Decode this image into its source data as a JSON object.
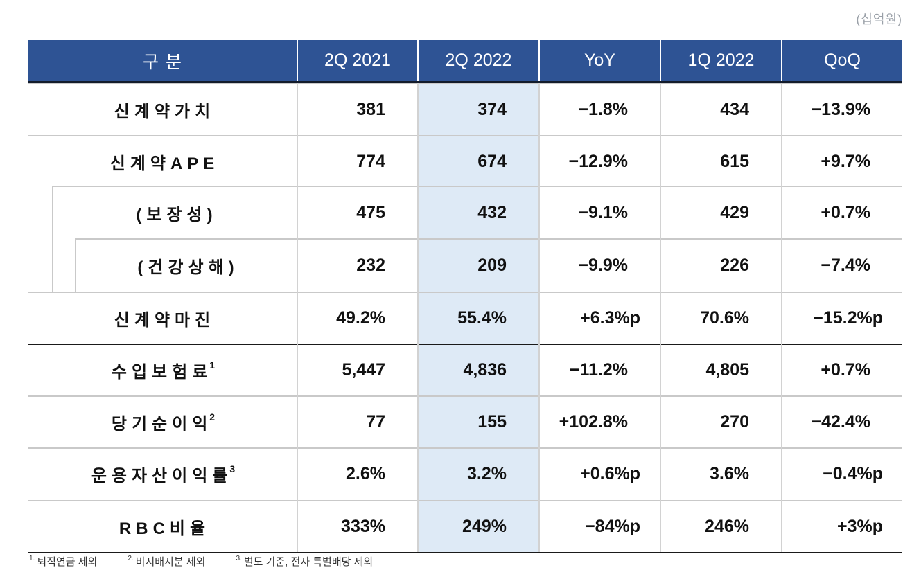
{
  "unit_label": "(십억원)",
  "colors": {
    "header_bg": "#2E5394",
    "header_text": "#FFFFFF",
    "highlight_column_bg": "#DEEAF6",
    "grid_line": "#C9C9C9",
    "section_line": "#1A1A1A",
    "unit_text": "#9AA0A8",
    "body_text": "#111111"
  },
  "table": {
    "columns": [
      "구분",
      "2Q 2021",
      "2Q 2022",
      "YoY",
      "1Q 2022",
      "QoQ"
    ],
    "highlighted_column": "2Q 2022",
    "rows": [
      {
        "label": "신계약가치",
        "sup": "",
        "indent": 0,
        "section_start": false,
        "values": [
          "381",
          "374",
          "−1.8%",
          "434",
          "−13.9%"
        ]
      },
      {
        "label": "신계약APE",
        "sup": "",
        "indent": 0,
        "section_start": false,
        "values": [
          "774",
          "674",
          "−12.9%",
          "615",
          "+9.7%"
        ]
      },
      {
        "label": "(보장성)",
        "sup": "",
        "indent": 1,
        "section_start": false,
        "values": [
          "475",
          "432",
          "−9.1%",
          "429",
          "+0.7%"
        ]
      },
      {
        "label": "(건강상해)",
        "sup": "",
        "indent": 2,
        "section_start": false,
        "values": [
          "232",
          "209",
          "−9.9%",
          "226",
          "−7.4%"
        ]
      },
      {
        "label": "신계약마진",
        "sup": "",
        "indent": 0,
        "section_start": false,
        "values": [
          "49.2%",
          "55.4%",
          "+6.3%p",
          "70.6%",
          "−15.2%p"
        ]
      },
      {
        "label": "수입보험료",
        "sup": "1",
        "indent": 0,
        "section_start": true,
        "values": [
          "5,447",
          "4,836",
          "−11.2%",
          "4,805",
          "+0.7%"
        ]
      },
      {
        "label": "당기순이익",
        "sup": "2",
        "indent": 0,
        "section_start": false,
        "values": [
          "77",
          "155",
          "+102.8%",
          "270",
          "−42.4%"
        ]
      },
      {
        "label": "운용자산이익률",
        "sup": "3",
        "indent": 0,
        "section_start": false,
        "values": [
          "2.6%",
          "3.2%",
          "+0.6%p",
          "3.6%",
          "−0.4%p"
        ]
      },
      {
        "label": "RBC비율",
        "sup": "",
        "indent": 0,
        "section_start": false,
        "values": [
          "333%",
          "249%",
          "−84%p",
          "246%",
          "+3%p"
        ]
      }
    ]
  },
  "footnotes": [
    {
      "marker": "1.",
      "text": "퇴직연금 제외"
    },
    {
      "marker": "2.",
      "text": "비지배지분 제외"
    },
    {
      "marker": "3.",
      "text": "별도 기준, 전자 특별배당 제외"
    }
  ]
}
